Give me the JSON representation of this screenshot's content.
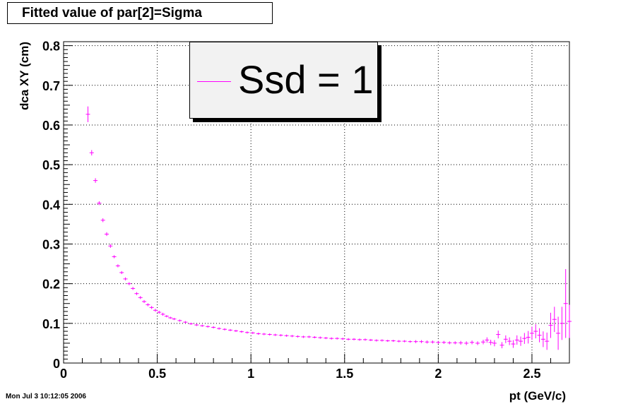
{
  "title": "Fitted value of par[2]=Sigma",
  "legend": {
    "label": "Ssd = 1"
  },
  "timestamp": "Mon Jul  3 10:12:05 2006",
  "colors": {
    "series": "#ff00ff",
    "grid": "#000000"
  },
  "chart_data": {
    "type": "scatter",
    "title": "Fitted value of par[2]=Sigma",
    "xlabel": "pt (GeV/c)",
    "ylabel": "dca XY (cm)",
    "xlim": [
      0,
      2.7
    ],
    "ylim": [
      0,
      0.81
    ],
    "grid": true,
    "legend_position": "top",
    "x_ticks": [
      "0",
      "0.5",
      "1",
      "1.5",
      "2",
      "2.5"
    ],
    "y_ticks": [
      "0",
      "0.1",
      "0.2",
      "0.3",
      "0.4",
      "0.5",
      "0.6",
      "0.7",
      "0.8"
    ],
    "series": [
      {
        "name": "Ssd = 1",
        "color": "#ff00ff",
        "x": [
          0.13,
          0.15,
          0.17,
          0.19,
          0.21,
          0.23,
          0.25,
          0.27,
          0.29,
          0.31,
          0.33,
          0.35,
          0.37,
          0.39,
          0.41,
          0.43,
          0.45,
          0.47,
          0.49,
          0.51,
          0.53,
          0.55,
          0.57,
          0.59,
          0.62,
          0.65,
          0.68,
          0.71,
          0.74,
          0.77,
          0.8,
          0.83,
          0.86,
          0.89,
          0.92,
          0.95,
          0.98,
          1.01,
          1.04,
          1.07,
          1.1,
          1.13,
          1.16,
          1.19,
          1.22,
          1.25,
          1.28,
          1.31,
          1.34,
          1.37,
          1.4,
          1.43,
          1.46,
          1.49,
          1.52,
          1.55,
          1.58,
          1.61,
          1.64,
          1.67,
          1.7,
          1.73,
          1.76,
          1.79,
          1.82,
          1.85,
          1.88,
          1.91,
          1.94,
          1.97,
          2.0,
          2.03,
          2.06,
          2.09,
          2.12,
          2.15,
          2.18,
          2.21,
          2.24,
          2.26,
          2.28,
          2.3,
          2.32,
          2.34,
          2.36,
          2.38,
          2.4,
          2.42,
          2.44,
          2.46,
          2.48,
          2.5,
          2.52,
          2.54,
          2.56,
          2.58,
          2.6,
          2.62,
          2.64,
          2.66,
          2.68,
          2.7
        ],
        "y": [
          0.627,
          0.53,
          0.46,
          0.403,
          0.36,
          0.325,
          0.295,
          0.268,
          0.245,
          0.228,
          0.212,
          0.2,
          0.188,
          0.175,
          0.165,
          0.155,
          0.147,
          0.14,
          0.133,
          0.128,
          0.123,
          0.118,
          0.114,
          0.111,
          0.107,
          0.103,
          0.099,
          0.096,
          0.094,
          0.092,
          0.09,
          0.087,
          0.085,
          0.083,
          0.081,
          0.079,
          0.077,
          0.076,
          0.074,
          0.073,
          0.072,
          0.071,
          0.07,
          0.069,
          0.068,
          0.067,
          0.066,
          0.066,
          0.065,
          0.064,
          0.063,
          0.062,
          0.062,
          0.061,
          0.06,
          0.06,
          0.059,
          0.059,
          0.058,
          0.057,
          0.057,
          0.056,
          0.056,
          0.055,
          0.055,
          0.054,
          0.054,
          0.054,
          0.053,
          0.053,
          0.052,
          0.052,
          0.051,
          0.051,
          0.051,
          0.05,
          0.052,
          0.05,
          0.053,
          0.058,
          0.052,
          0.05,
          0.072,
          0.045,
          0.06,
          0.055,
          0.048,
          0.058,
          0.055,
          0.062,
          0.065,
          0.075,
          0.08,
          0.07,
          0.06,
          0.055,
          0.095,
          0.11,
          0.075,
          0.1,
          0.15,
          0.105
        ],
        "err": [
          0.018,
          0.005,
          0.004,
          0.003,
          0.003,
          0.003,
          0.003,
          0.002,
          0.002,
          0.002,
          0.002,
          0.002,
          0.002,
          0.002,
          0.002,
          0.002,
          0.002,
          0.002,
          0.002,
          0.002,
          0.002,
          0.001,
          0.001,
          0.001,
          0.001,
          0.001,
          0.001,
          0.001,
          0.001,
          0.001,
          0.001,
          0.001,
          0.001,
          0.001,
          0.001,
          0.001,
          0.001,
          0.001,
          0.001,
          0.001,
          0.001,
          0.001,
          0.001,
          0.001,
          0.001,
          0.001,
          0.001,
          0.001,
          0.001,
          0.001,
          0.001,
          0.001,
          0.001,
          0.001,
          0.001,
          0.001,
          0.001,
          0.001,
          0.001,
          0.001,
          0.001,
          0.001,
          0.001,
          0.001,
          0.001,
          0.001,
          0.002,
          0.002,
          0.002,
          0.002,
          0.002,
          0.002,
          0.002,
          0.002,
          0.003,
          0.003,
          0.003,
          0.003,
          0.004,
          0.005,
          0.005,
          0.006,
          0.008,
          0.006,
          0.008,
          0.008,
          0.008,
          0.01,
          0.01,
          0.012,
          0.014,
          0.015,
          0.016,
          0.016,
          0.018,
          0.02,
          0.03,
          0.03,
          0.04,
          0.04,
          0.085,
          0.04
        ]
      }
    ]
  }
}
